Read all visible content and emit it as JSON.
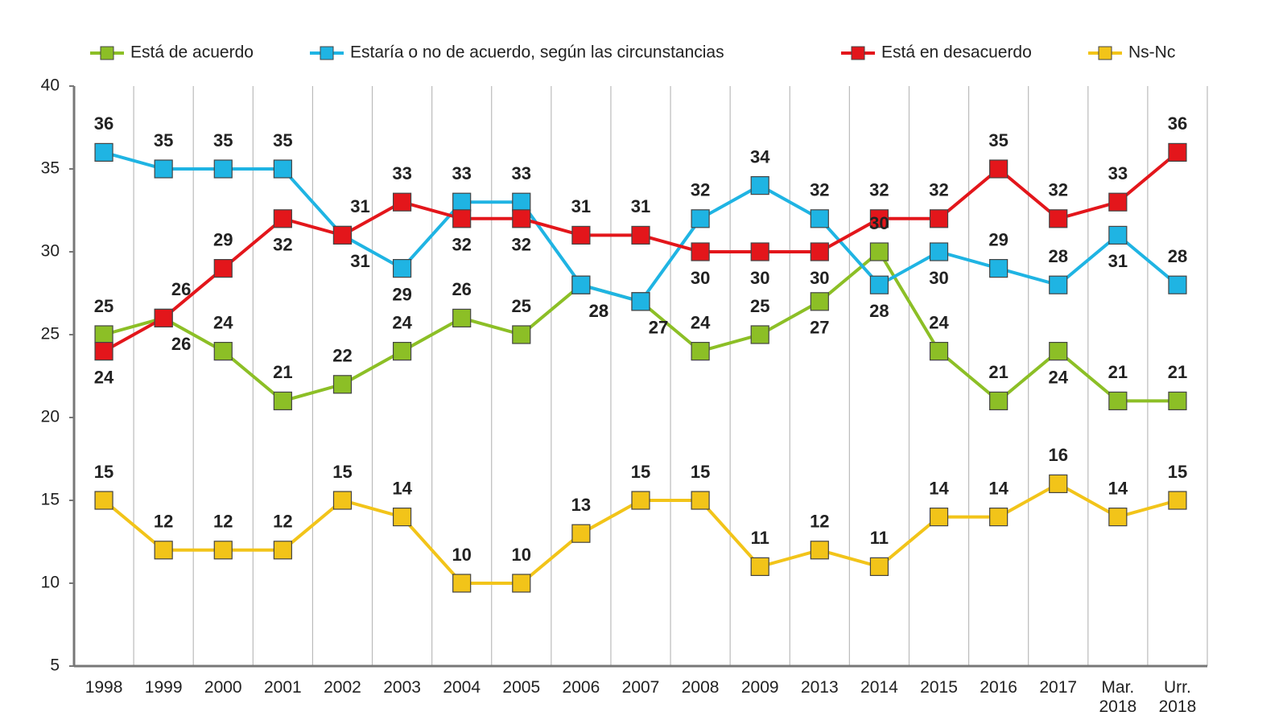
{
  "chart_data": {
    "type": "line",
    "categories": [
      "1998",
      "1999",
      "2000",
      "2001",
      "2002",
      "2003",
      "2004",
      "2005",
      "2006",
      "2007",
      "2008",
      "2009",
      "2013",
      "2014",
      "2015",
      "2016",
      "2017",
      "Mar.\n2018",
      "Urr.\n2018"
    ],
    "series": [
      {
        "name": "Está de acuerdo",
        "color": "#8cbf26",
        "values": [
          25,
          26,
          24,
          21,
          22,
          24,
          26,
          25,
          28,
          27,
          24,
          25,
          27,
          30,
          24,
          21,
          24,
          21,
          21
        ]
      },
      {
        "name": "Estaría o no de acuerdo, según las circunstancias",
        "color": "#1fb4e3",
        "values": [
          36,
          35,
          35,
          35,
          31,
          29,
          33,
          33,
          28,
          27,
          32,
          34,
          32,
          28,
          30,
          29,
          28,
          31,
          28
        ]
      },
      {
        "name": "Está en desacuerdo",
        "color": "#e3161b",
        "values": [
          24,
          26,
          29,
          32,
          31,
          33,
          32,
          32,
          31,
          31,
          30,
          30,
          30,
          32,
          32,
          35,
          32,
          33,
          36
        ]
      },
      {
        "name": "Ns-Nc",
        "color": "#f2c419",
        "values": [
          15,
          12,
          12,
          12,
          15,
          14,
          10,
          10,
          13,
          15,
          15,
          11,
          12,
          11,
          14,
          14,
          16,
          14,
          15
        ]
      }
    ],
    "ylim": [
      5,
      40
    ],
    "yticks": [
      5,
      10,
      15,
      20,
      25,
      30,
      35,
      40
    ],
    "grid": true,
    "legend": "top"
  }
}
